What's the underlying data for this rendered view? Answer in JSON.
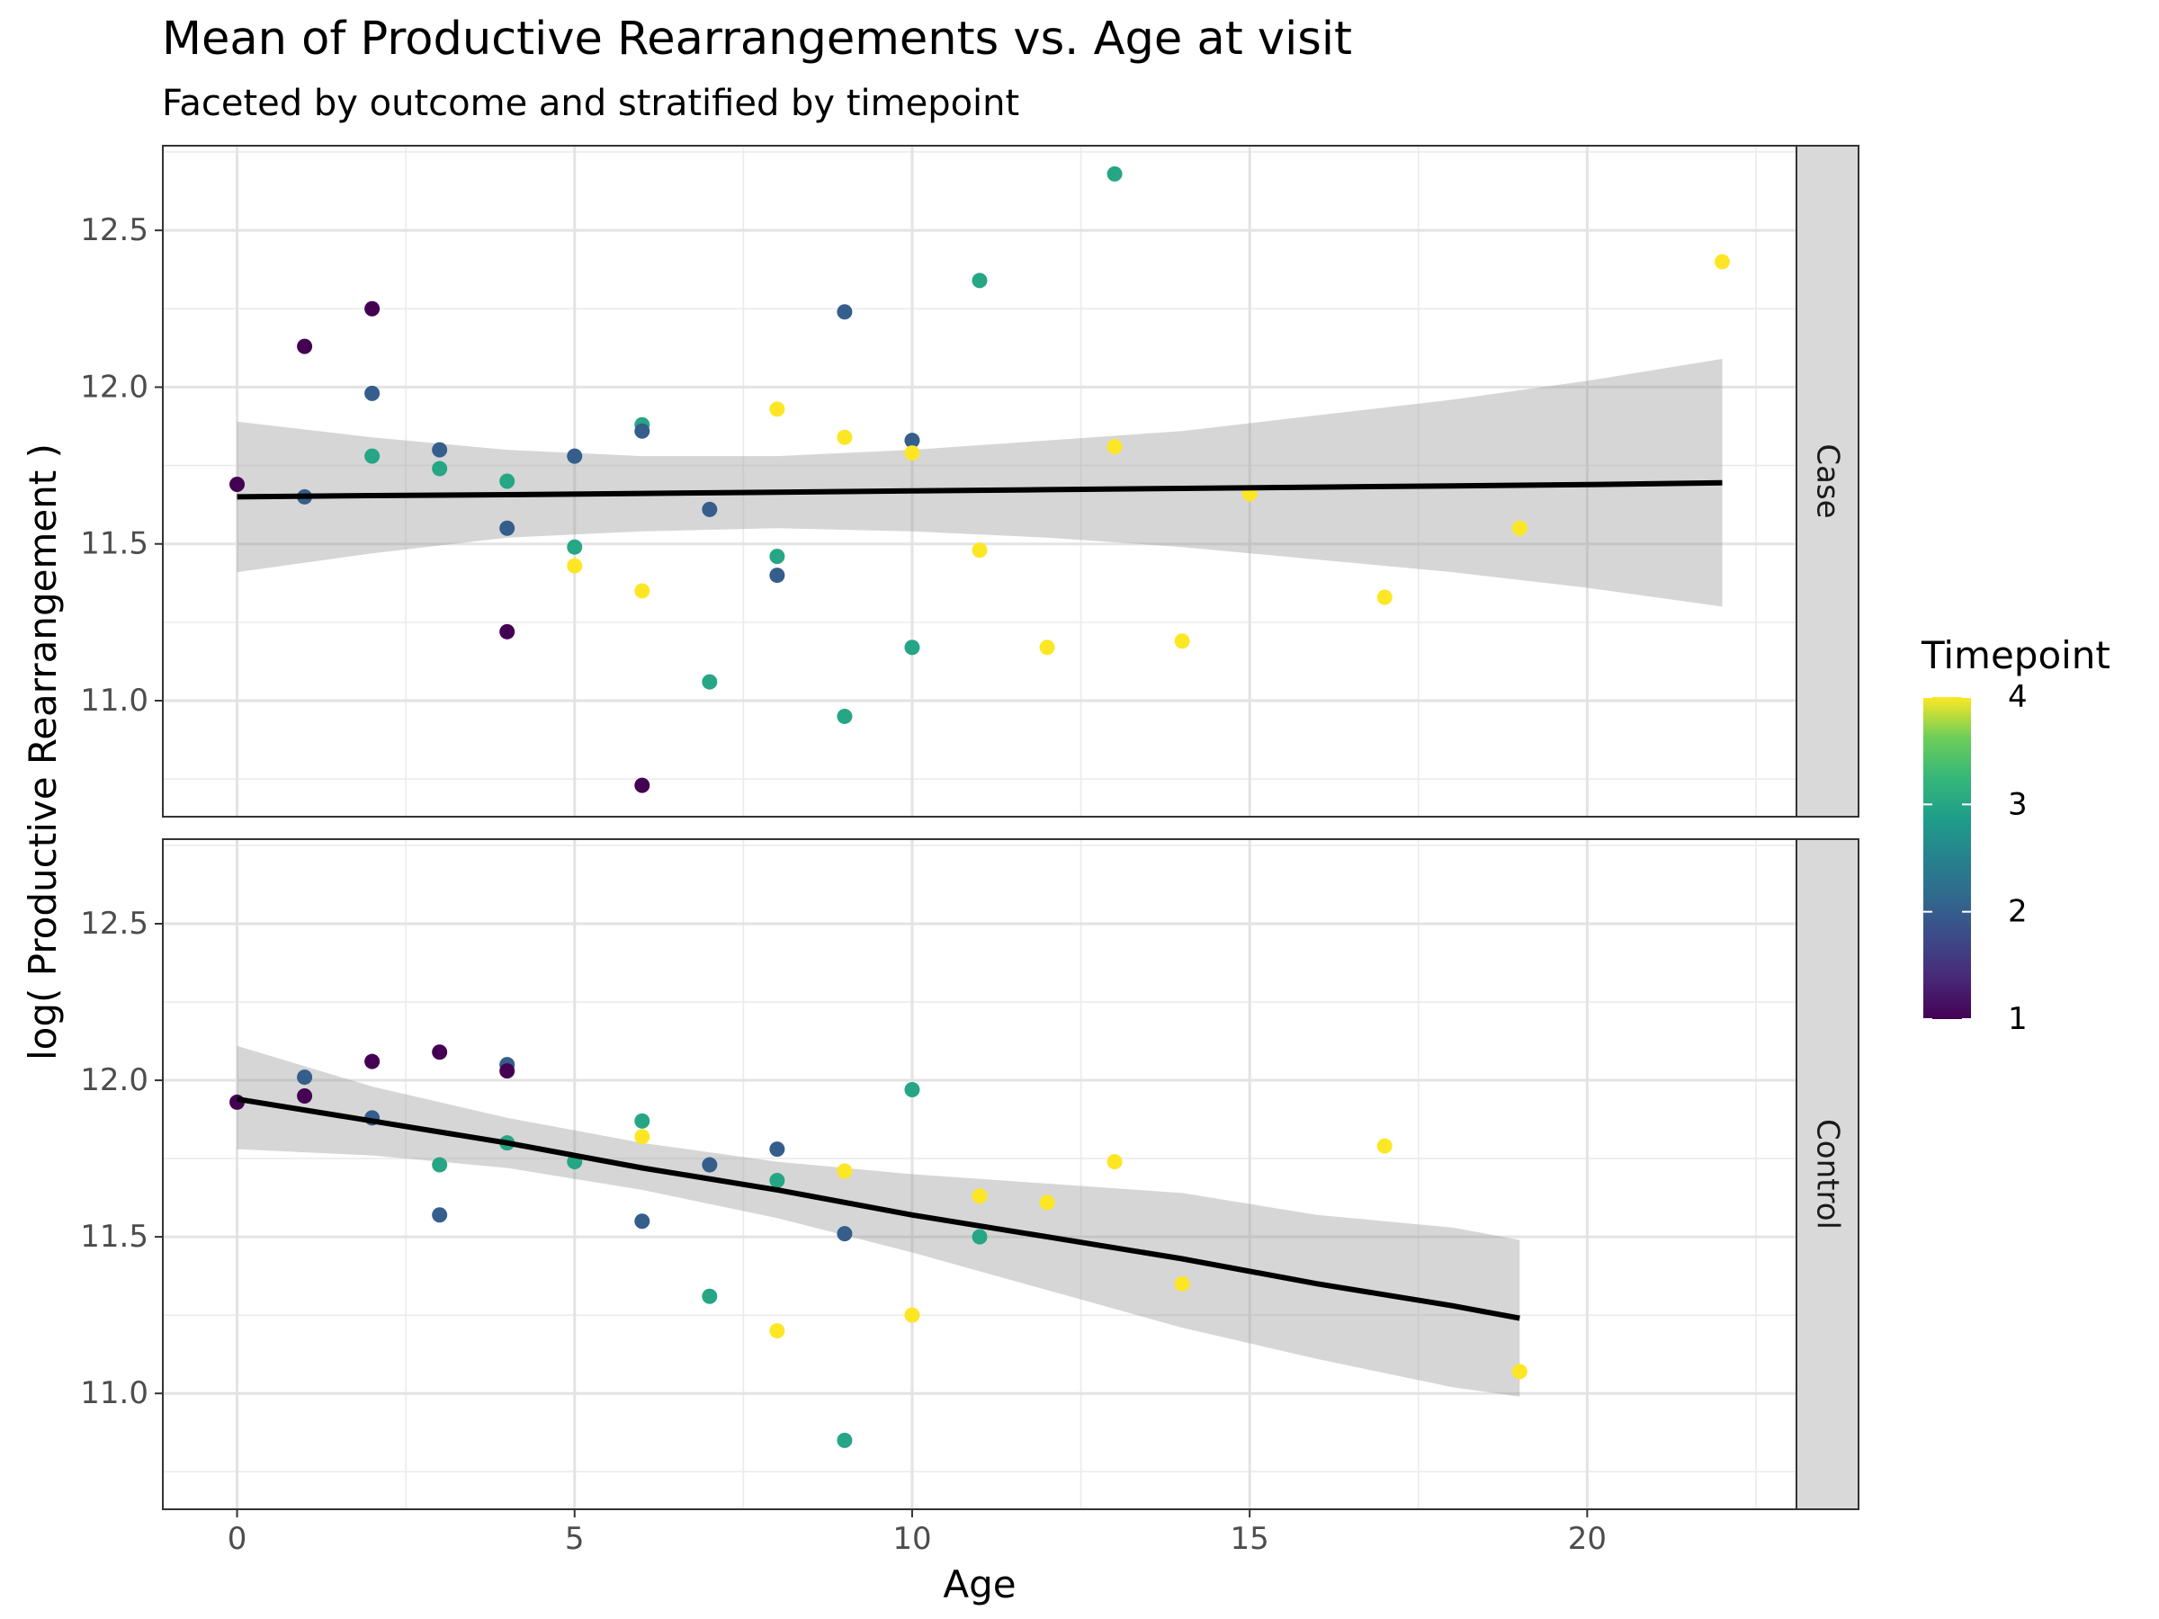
{
  "chart_data": {
    "type": "scatter",
    "title": "Mean of Productive Rearrangements vs. Age at visit",
    "subtitle": "Faceted by outcome and stratified by timepoint",
    "xlabel": "Age",
    "ylabel": "log( Productive Rearrangement )",
    "xlim": [
      -1.1,
      23.1
    ],
    "ylim": [
      10.63,
      12.77
    ],
    "x_ticks": [
      0,
      5,
      10,
      15,
      20
    ],
    "y_ticks": [
      11.0,
      11.5,
      12.0,
      12.5
    ],
    "x_tick_labels": [
      "0",
      "5",
      "10",
      "15",
      "20"
    ],
    "y_tick_labels": [
      "11.0",
      "11.5",
      "12.0",
      "12.5"
    ],
    "grid": true,
    "theme": "bw",
    "legend": {
      "title": "Timepoint",
      "position": "right",
      "type": "colorbar",
      "range": [
        1,
        4
      ],
      "ticks": [
        "1",
        "2",
        "3",
        "4"
      ],
      "palette": "viridis"
    },
    "facets": [
      {
        "label": "Case",
        "points": [
          {
            "x": 0,
            "y": 11.69,
            "t": 1
          },
          {
            "x": 1,
            "y": 12.13,
            "t": 1
          },
          {
            "x": 1,
            "y": 11.65,
            "t": 2
          },
          {
            "x": 2,
            "y": 12.25,
            "t": 1
          },
          {
            "x": 2,
            "y": 11.98,
            "t": 2
          },
          {
            "x": 2,
            "y": 11.78,
            "t": 3
          },
          {
            "x": 3,
            "y": 11.8,
            "t": 2
          },
          {
            "x": 3,
            "y": 11.74,
            "t": 3
          },
          {
            "x": 4,
            "y": 11.7,
            "t": 3
          },
          {
            "x": 4,
            "y": 11.55,
            "t": 2
          },
          {
            "x": 4,
            "y": 11.22,
            "t": 1
          },
          {
            "x": 5,
            "y": 11.78,
            "t": 2
          },
          {
            "x": 5,
            "y": 11.49,
            "t": 3
          },
          {
            "x": 5,
            "y": 11.43,
            "t": 4
          },
          {
            "x": 6,
            "y": 11.88,
            "t": 3
          },
          {
            "x": 6,
            "y": 11.86,
            "t": 2
          },
          {
            "x": 6,
            "y": 11.35,
            "t": 4
          },
          {
            "x": 6,
            "y": 10.73,
            "t": 1
          },
          {
            "x": 7,
            "y": 11.61,
            "t": 2
          },
          {
            "x": 7,
            "y": 11.06,
            "t": 3
          },
          {
            "x": 8,
            "y": 11.93,
            "t": 4
          },
          {
            "x": 8,
            "y": 11.46,
            "t": 3
          },
          {
            "x": 8,
            "y": 11.4,
            "t": 2
          },
          {
            "x": 9,
            "y": 12.24,
            "t": 2
          },
          {
            "x": 9,
            "y": 11.84,
            "t": 4
          },
          {
            "x": 9,
            "y": 10.95,
            "t": 3
          },
          {
            "x": 10,
            "y": 11.83,
            "t": 2
          },
          {
            "x": 10,
            "y": 11.79,
            "t": 4
          },
          {
            "x": 10,
            "y": 11.17,
            "t": 3
          },
          {
            "x": 11,
            "y": 12.34,
            "t": 3
          },
          {
            "x": 11,
            "y": 11.48,
            "t": 4
          },
          {
            "x": 12,
            "y": 11.17,
            "t": 4
          },
          {
            "x": 13,
            "y": 12.68,
            "t": 3
          },
          {
            "x": 13,
            "y": 11.81,
            "t": 4
          },
          {
            "x": 14,
            "y": 11.19,
            "t": 4
          },
          {
            "x": 15,
            "y": 11.66,
            "t": 4
          },
          {
            "x": 17,
            "y": 11.33,
            "t": 4
          },
          {
            "x": 19,
            "y": 11.55,
            "t": 4
          },
          {
            "x": 22,
            "y": 12.4,
            "t": 4
          }
        ],
        "fit": {
          "x": [
            0,
            2,
            4,
            6,
            8,
            10,
            12,
            14,
            16,
            18,
            20,
            22
          ],
          "y": [
            11.65,
            11.654,
            11.657,
            11.661,
            11.665,
            11.669,
            11.673,
            11.677,
            11.681,
            11.685,
            11.689,
            11.695
          ],
          "lower": [
            11.41,
            11.47,
            11.52,
            11.54,
            11.55,
            11.54,
            11.52,
            11.49,
            11.45,
            11.41,
            11.36,
            11.3
          ],
          "upper": [
            11.89,
            11.84,
            11.8,
            11.78,
            11.78,
            11.8,
            11.83,
            11.86,
            11.91,
            11.96,
            12.02,
            12.09
          ]
        }
      },
      {
        "label": "Control",
        "points": [
          {
            "x": 0,
            "y": 11.93,
            "t": 1
          },
          {
            "x": 1,
            "y": 12.01,
            "t": 2
          },
          {
            "x": 1,
            "y": 11.95,
            "t": 1
          },
          {
            "x": 2,
            "y": 12.06,
            "t": 1
          },
          {
            "x": 2,
            "y": 11.88,
            "t": 2
          },
          {
            "x": 3,
            "y": 12.09,
            "t": 1
          },
          {
            "x": 3,
            "y": 11.73,
            "t": 3
          },
          {
            "x": 3,
            "y": 11.57,
            "t": 2
          },
          {
            "x": 4,
            "y": 12.05,
            "t": 2
          },
          {
            "x": 4,
            "y": 12.03,
            "t": 1
          },
          {
            "x": 4,
            "y": 11.8,
            "t": 3
          },
          {
            "x": 5,
            "y": 11.74,
            "t": 3
          },
          {
            "x": 6,
            "y": 11.87,
            "t": 3
          },
          {
            "x": 6,
            "y": 11.82,
            "t": 4
          },
          {
            "x": 6,
            "y": 11.55,
            "t": 2
          },
          {
            "x": 7,
            "y": 11.73,
            "t": 2
          },
          {
            "x": 7,
            "y": 11.31,
            "t": 3
          },
          {
            "x": 8,
            "y": 11.78,
            "t": 2
          },
          {
            "x": 8,
            "y": 11.68,
            "t": 3
          },
          {
            "x": 8,
            "y": 11.2,
            "t": 4
          },
          {
            "x": 9,
            "y": 11.71,
            "t": 4
          },
          {
            "x": 9,
            "y": 11.51,
            "t": 2
          },
          {
            "x": 9,
            "y": 10.85,
            "t": 3
          },
          {
            "x": 10,
            "y": 11.97,
            "t": 3
          },
          {
            "x": 10,
            "y": 11.25,
            "t": 4
          },
          {
            "x": 11,
            "y": 11.63,
            "t": 4
          },
          {
            "x": 11,
            "y": 11.5,
            "t": 3
          },
          {
            "x": 12,
            "y": 11.61,
            "t": 4
          },
          {
            "x": 13,
            "y": 11.74,
            "t": 4
          },
          {
            "x": 14,
            "y": 11.35,
            "t": 4
          },
          {
            "x": 17,
            "y": 11.79,
            "t": 4
          },
          {
            "x": 19,
            "y": 11.07,
            "t": 4
          }
        ],
        "fit": {
          "x": [
            0,
            2,
            4,
            6,
            8,
            10,
            12,
            14,
            16,
            18,
            19
          ],
          "y": [
            11.94,
            11.87,
            11.8,
            11.72,
            11.65,
            11.57,
            11.5,
            11.43,
            11.35,
            11.28,
            11.24
          ],
          "lower": [
            11.78,
            11.76,
            11.72,
            11.65,
            11.56,
            11.45,
            11.33,
            11.21,
            11.11,
            11.02,
            10.99
          ],
          "upper": [
            12.11,
            11.98,
            11.88,
            11.8,
            11.74,
            11.7,
            11.67,
            11.64,
            11.57,
            11.53,
            11.49
          ]
        }
      }
    ]
  }
}
